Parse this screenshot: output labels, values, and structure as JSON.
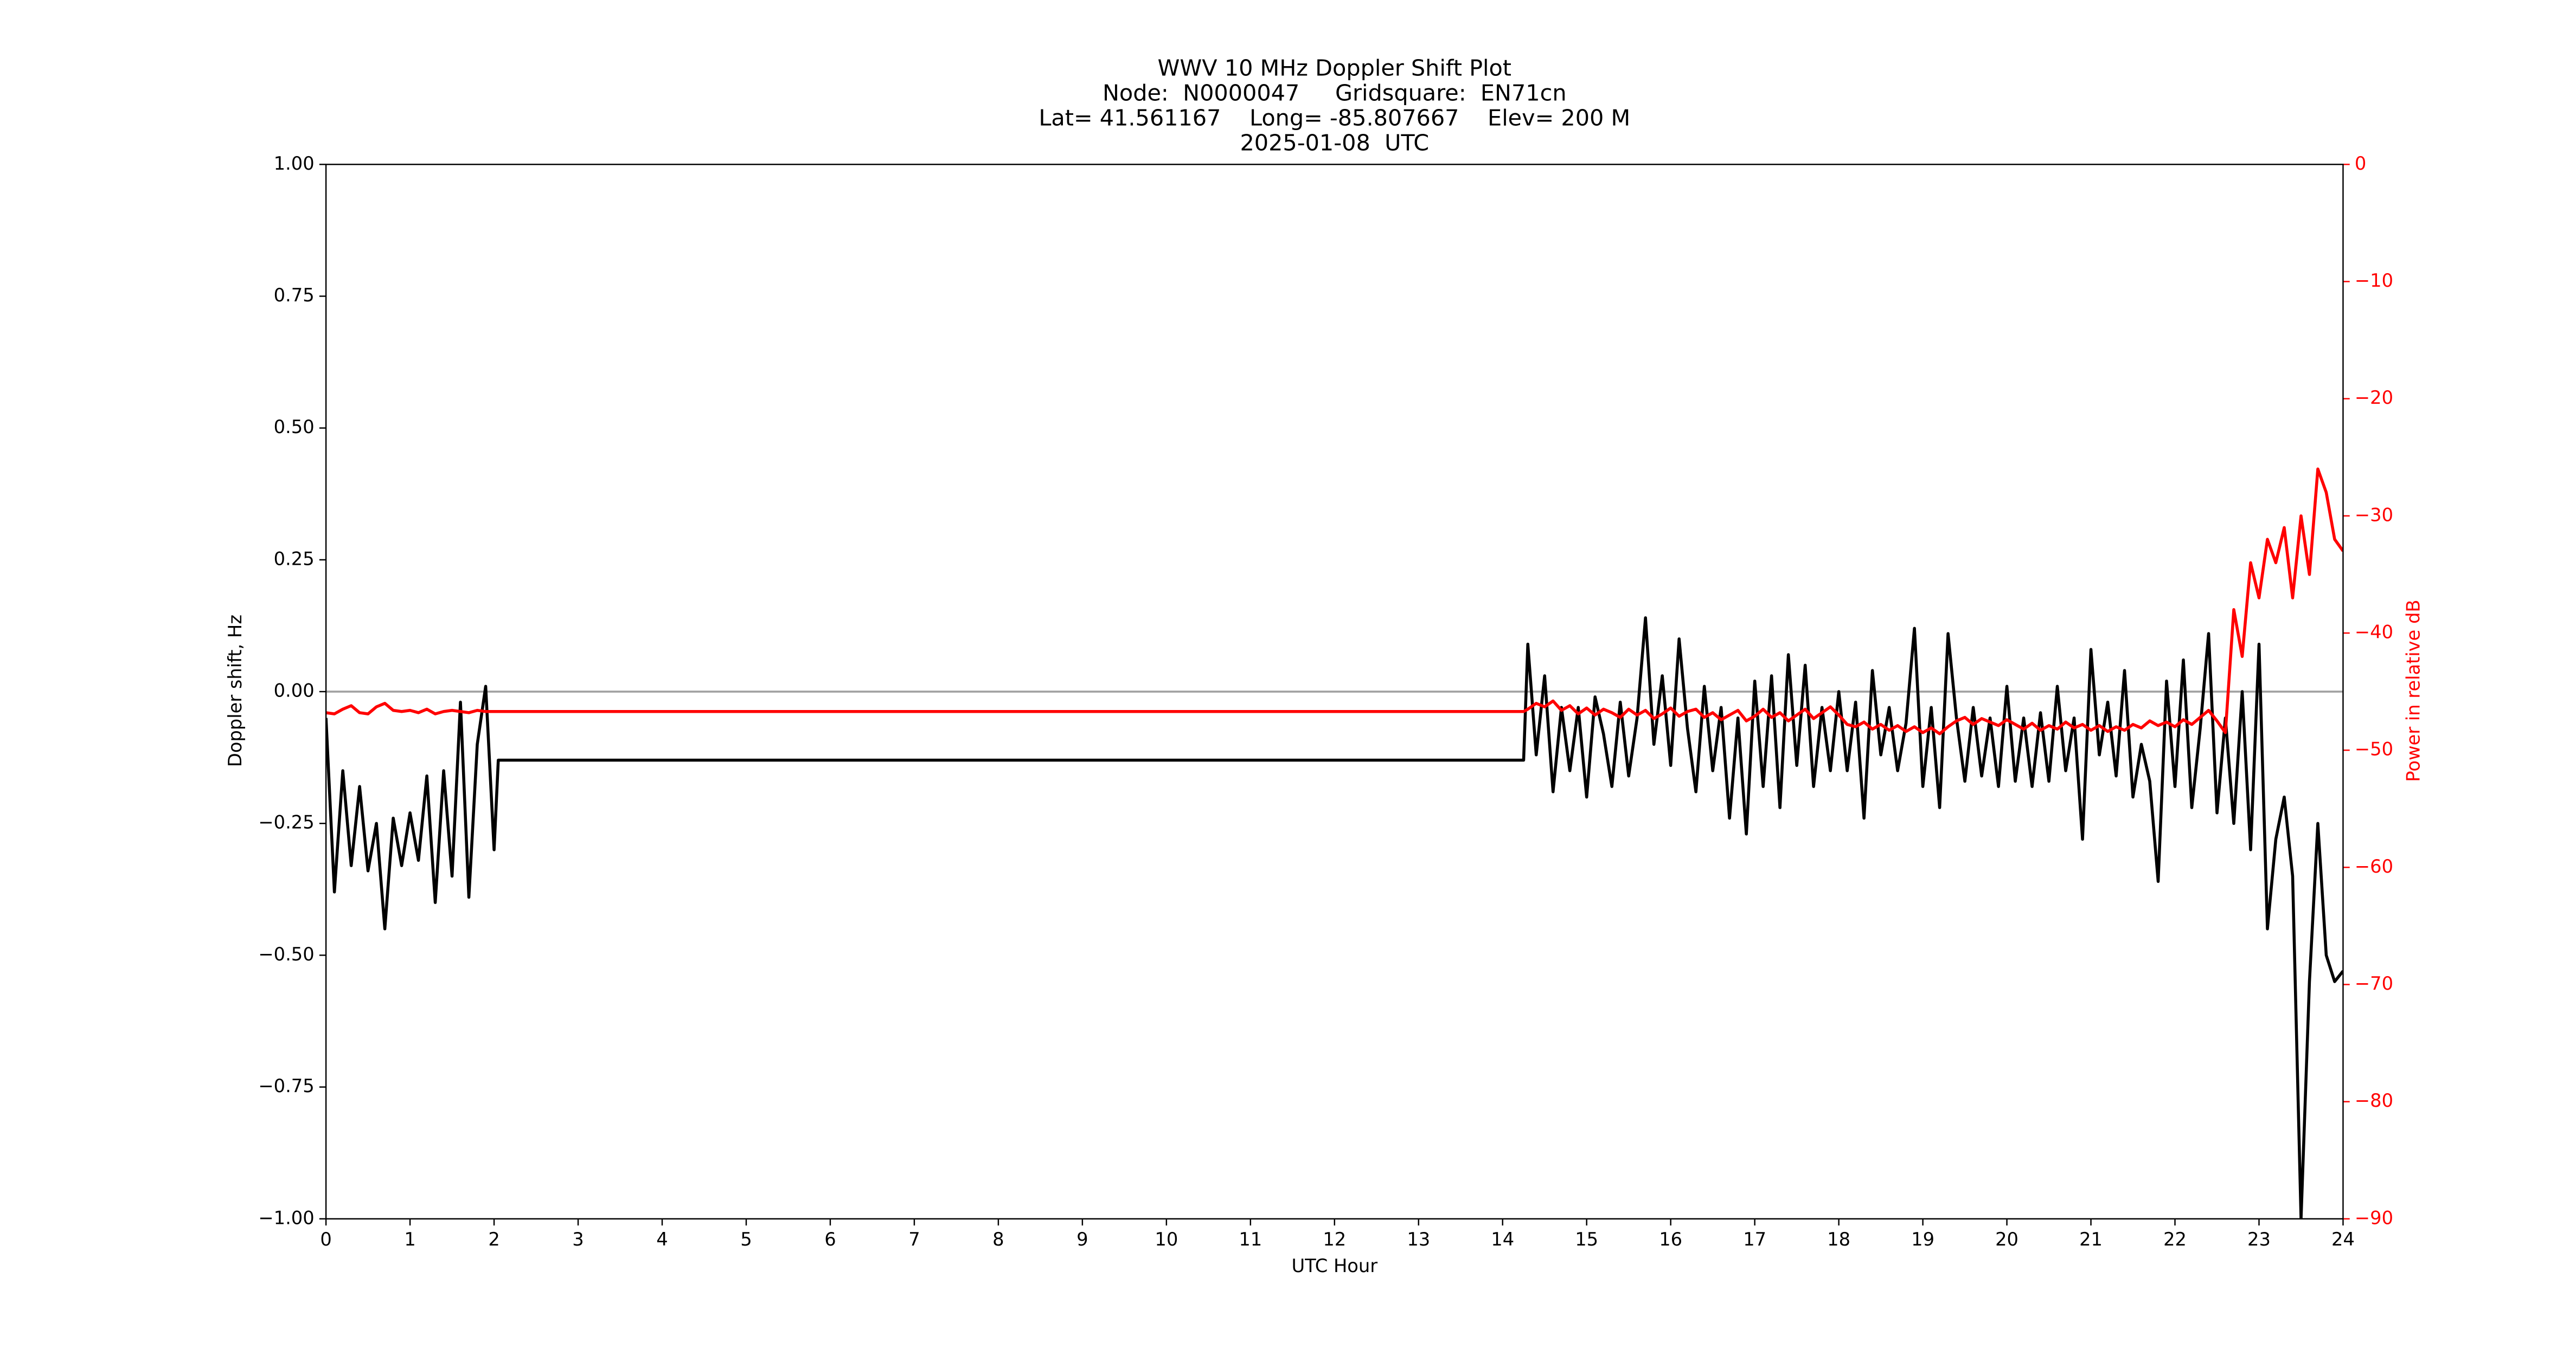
{
  "chart_data": {
    "type": "line",
    "title": [
      "WWV 10 MHz Doppler Shift Plot",
      "Node:  N0000047     Gridsquare:  EN71cn",
      "Lat= 41.561167    Long= -85.807667    Elev= 200 M",
      "2025-01-08  UTC"
    ],
    "x_label": "UTC Hour",
    "y_label": "Doppler shift, Hz",
    "y2_label": "Power in relative dB",
    "y2_color": "#ff0000",
    "x": [
      0,
      0.1,
      0.2,
      0.3,
      0.4,
      0.5,
      0.6,
      0.7,
      0.8,
      0.9,
      1.0,
      1.1,
      1.2,
      1.3,
      1.4,
      1.5,
      1.6,
      1.7,
      1.8,
      1.9,
      2.0,
      2.05,
      14.25,
      14.3,
      14.4,
      14.5,
      14.6,
      14.7,
      14.8,
      14.9,
      15.0,
      15.1,
      15.2,
      15.3,
      15.4,
      15.5,
      15.6,
      15.7,
      15.8,
      15.9,
      16.0,
      16.1,
      16.2,
      16.3,
      16.4,
      16.5,
      16.6,
      16.7,
      16.8,
      16.9,
      17.0,
      17.1,
      17.2,
      17.3,
      17.4,
      17.5,
      17.6,
      17.7,
      17.8,
      17.9,
      18.0,
      18.1,
      18.2,
      18.3,
      18.4,
      18.5,
      18.6,
      18.7,
      18.8,
      18.9,
      19.0,
      19.1,
      19.2,
      19.3,
      19.4,
      19.5,
      19.6,
      19.7,
      19.8,
      19.9,
      20.0,
      20.1,
      20.2,
      20.3,
      20.4,
      20.5,
      20.6,
      20.7,
      20.8,
      20.9,
      21.0,
      21.1,
      21.2,
      21.3,
      21.4,
      21.5,
      21.6,
      21.7,
      21.8,
      21.9,
      22.0,
      22.1,
      22.2,
      22.3,
      22.4,
      22.5,
      22.6,
      22.7,
      22.8,
      22.9,
      23.0,
      23.1,
      23.2,
      23.3,
      23.4,
      23.5,
      23.6,
      23.7,
      23.8,
      23.9,
      24.0
    ],
    "series": [
      {
        "name": "Doppler shift",
        "color": "#000000",
        "axis": "y",
        "values": [
          -0.05,
          -0.38,
          -0.15,
          -0.33,
          -0.18,
          -0.34,
          -0.25,
          -0.45,
          -0.24,
          -0.33,
          -0.23,
          -0.32,
          -0.16,
          -0.4,
          -0.15,
          -0.35,
          -0.02,
          -0.39,
          -0.1,
          0.01,
          -0.3,
          -0.13,
          -0.13,
          0.09,
          -0.12,
          0.03,
          -0.19,
          -0.03,
          -0.15,
          -0.03,
          -0.2,
          -0.01,
          -0.08,
          -0.18,
          -0.02,
          -0.16,
          -0.05,
          0.14,
          -0.1,
          0.03,
          -0.14,
          0.1,
          -0.07,
          -0.19,
          0.01,
          -0.15,
          -0.03,
          -0.24,
          -0.05,
          -0.27,
          0.02,
          -0.18,
          0.03,
          -0.22,
          0.07,
          -0.14,
          0.05,
          -0.18,
          -0.03,
          -0.15,
          0.0,
          -0.15,
          -0.02,
          -0.24,
          0.04,
          -0.12,
          -0.03,
          -0.15,
          -0.06,
          0.12,
          -0.18,
          -0.03,
          -0.22,
          0.11,
          -0.05,
          -0.17,
          -0.03,
          -0.16,
          -0.05,
          -0.18,
          0.01,
          -0.17,
          -0.05,
          -0.18,
          -0.04,
          -0.17,
          0.01,
          -0.15,
          -0.05,
          -0.28,
          0.08,
          -0.12,
          -0.02,
          -0.16,
          0.04,
          -0.2,
          -0.1,
          -0.17,
          -0.36,
          0.02,
          -0.18,
          0.06,
          -0.22,
          -0.07,
          0.11,
          -0.23,
          -0.05,
          -0.25,
          0.0,
          -0.3,
          0.09,
          -0.45,
          -0.28,
          -0.2,
          -0.35,
          -1.0,
          -0.55,
          -0.25,
          -0.5,
          -0.55,
          -0.53
        ]
      },
      {
        "name": "Power",
        "color": "#ff0000",
        "axis": "y2",
        "values": [
          -46.8,
          -46.9,
          -46.5,
          -46.2,
          -46.8,
          -46.9,
          -46.3,
          -46.0,
          -46.6,
          -46.7,
          -46.6,
          -46.8,
          -46.5,
          -46.9,
          -46.7,
          -46.6,
          -46.7,
          -46.8,
          -46.6,
          -46.7,
          -46.7,
          -46.7,
          -46.7,
          -46.5,
          -46.0,
          -46.3,
          -45.8,
          -46.6,
          -46.2,
          -46.9,
          -46.4,
          -47.0,
          -46.5,
          -46.8,
          -47.2,
          -46.5,
          -47.0,
          -46.6,
          -47.3,
          -46.9,
          -46.4,
          -47.1,
          -46.7,
          -46.5,
          -47.2,
          -46.8,
          -47.4,
          -47.0,
          -46.6,
          -47.5,
          -47.1,
          -46.5,
          -47.2,
          -46.8,
          -47.5,
          -47.0,
          -46.5,
          -47.3,
          -46.8,
          -46.3,
          -47.0,
          -47.8,
          -48.0,
          -47.6,
          -48.2,
          -47.8,
          -48.3,
          -47.9,
          -48.4,
          -48.0,
          -48.5,
          -48.1,
          -48.6,
          -48.0,
          -47.5,
          -47.2,
          -47.8,
          -47.3,
          -47.6,
          -47.9,
          -47.4,
          -47.8,
          -48.2,
          -47.7,
          -48.3,
          -47.9,
          -48.2,
          -47.6,
          -48.1,
          -47.8,
          -48.3,
          -47.9,
          -48.4,
          -48.0,
          -48.3,
          -47.8,
          -48.1,
          -47.5,
          -47.9,
          -47.6,
          -48.0,
          -47.4,
          -47.8,
          -47.2,
          -46.6,
          -47.5,
          -48.5,
          -38,
          -42,
          -34,
          -37,
          -32,
          -34,
          -31,
          -37,
          -30,
          -35,
          -26,
          -28,
          -32,
          -33
        ]
      }
    ],
    "zero_line": {
      "y": 0,
      "color": "#a0a0a0"
    },
    "xlim": [
      0,
      24
    ],
    "xticks": [
      0,
      1,
      2,
      3,
      4,
      5,
      6,
      7,
      8,
      9,
      10,
      11,
      12,
      13,
      14,
      15,
      16,
      17,
      18,
      19,
      20,
      21,
      22,
      23,
      24
    ],
    "ylim": [
      -1,
      1
    ],
    "yticks": [
      {
        "value": -1,
        "label": "−1.00"
      },
      {
        "value": -0.75,
        "label": "−0.75"
      },
      {
        "value": -0.5,
        "label": "−0.50"
      },
      {
        "value": -0.25,
        "label": "−0.25"
      },
      {
        "value": 0,
        "label": "0.00"
      },
      {
        "value": 0.25,
        "label": "0.25"
      },
      {
        "value": 0.5,
        "label": "0.50"
      },
      {
        "value": 0.75,
        "label": "0.75"
      },
      {
        "value": 1,
        "label": "1.00"
      }
    ],
    "y2lim": [
      -90,
      0
    ],
    "y2ticks": [
      {
        "value": -90,
        "label": "−90"
      },
      {
        "value": -80,
        "label": "−80"
      },
      {
        "value": -70,
        "label": "−70"
      },
      {
        "value": -60,
        "label": "−60"
      },
      {
        "value": -50,
        "label": "−50"
      },
      {
        "value": -40,
        "label": "−40"
      },
      {
        "value": -30,
        "label": "−30"
      },
      {
        "value": -20,
        "label": "−20"
      },
      {
        "value": -10,
        "label": "−10"
      },
      0
    ],
    "grid": false
  }
}
